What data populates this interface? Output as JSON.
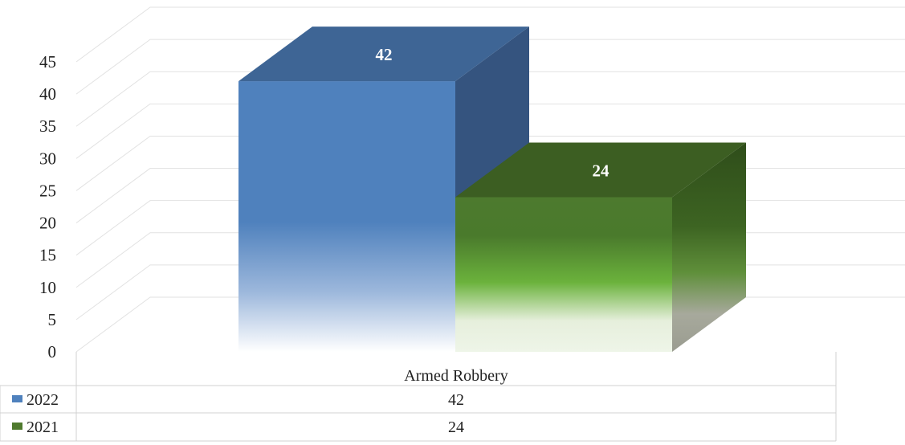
{
  "chart_data": {
    "type": "bar",
    "style": "3d-column-with-data-table",
    "categories": [
      "Armed Robbery"
    ],
    "series": [
      {
        "name": "2022",
        "values": [
          42
        ],
        "color": "#4f81bd",
        "top_color": "#3e6595",
        "side_color": "#35547f"
      },
      {
        "name": "2021",
        "values": [
          24
        ],
        "color": "#4f7a2e",
        "top_color": "#3c5e22",
        "side_color": "#2f4d1a"
      }
    ],
    "ylim": [
      0,
      45
    ],
    "yticks": [
      0,
      5,
      10,
      15,
      20,
      25,
      30,
      35,
      40,
      45
    ],
    "grid": true,
    "data_labels": true,
    "data_table": true,
    "title": "",
    "xlabel": "",
    "ylabel": ""
  }
}
